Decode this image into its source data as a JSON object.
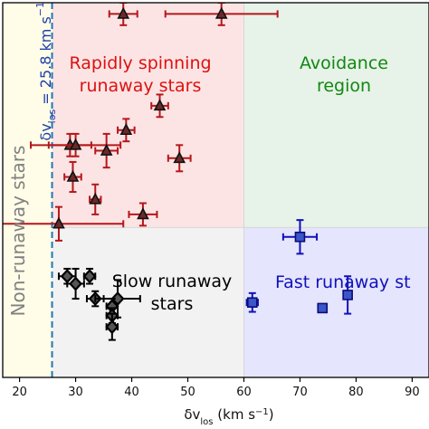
{
  "chart_data": {
    "type": "scatter",
    "xlabel": "δv_los (km s⁻¹)",
    "xlabel_main": "δv",
    "xlabel_sub": "los",
    "xlabel_unit_open": " (km s",
    "xlabel_unit_exp": "−1",
    "xlabel_unit_close": ")",
    "xlim": [
      17,
      93
    ],
    "ylim": [
      0,
      1
    ],
    "xticks": [
      "20",
      "30",
      "40",
      "50",
      "60",
      "70",
      "80",
      "90"
    ],
    "xtick_values": [
      20,
      30,
      40,
      50,
      60,
      70,
      80,
      90
    ],
    "grid": false,
    "threshold": {
      "value": 25.8,
      "label_main": "δv",
      "label_sub": "los",
      "label_eq": " = 25.8 km s",
      "label_exp": "−1",
      "color": "#1f77b4"
    },
    "regions": [
      {
        "name": "non-runaway",
        "x": [
          17,
          25.8
        ],
        "y": [
          0,
          1
        ],
        "color": "#fffde8",
        "label_lines": [
          "Non-runaway stars"
        ],
        "label_color": "#808080"
      },
      {
        "name": "rapid",
        "x": [
          25.8,
          60
        ],
        "y": [
          0.4,
          1
        ],
        "color": "#fde4e4",
        "label_lines": [
          "Rapidly spinning",
          "runaway stars"
        ],
        "label_color": "#dd1111"
      },
      {
        "name": "avoidance",
        "x": [
          60,
          93
        ],
        "y": [
          0.4,
          1
        ],
        "color": "#e7f2e8",
        "label_lines": [
          "Avoidance",
          "region"
        ],
        "label_color": "#118811"
      },
      {
        "name": "slow",
        "x": [
          25.8,
          60
        ],
        "y": [
          0,
          0.4
        ],
        "color": "#f2f2f2",
        "label_lines": [
          "Slow runaway",
          "stars"
        ],
        "label_color": "#000000"
      },
      {
        "name": "fast",
        "x": [
          60,
          93
        ],
        "y": [
          0,
          0.4
        ],
        "color": "#e5e5fd",
        "label_lines": [
          "Fast runaway st"
        ],
        "label_color": "#1111bb"
      }
    ],
    "series": [
      {
        "marker": "triangle",
        "color": "#b5171b",
        "fill": "#6a2a2a",
        "points": [
          {
            "x": 38.5,
            "y": 0.97,
            "xerr": 2.5,
            "yerr": 0.03
          },
          {
            "x": 56.0,
            "y": 0.97,
            "xerr": 10.0,
            "yerr": 0.03
          },
          {
            "x": 45.0,
            "y": 0.725,
            "xerr": 1.5,
            "yerr": 0.03
          },
          {
            "x": 39.0,
            "y": 0.66,
            "xerr": 1.5,
            "yerr": 0.03
          },
          {
            "x": 29.0,
            "y": 0.62,
            "xerr": 3.8,
            "yerr": 0.03
          },
          {
            "x": 30.0,
            "y": 0.62,
            "xerr": 8.0,
            "yerr": 0.03
          },
          {
            "x": 35.5,
            "y": 0.605,
            "xerr": 2.0,
            "yerr": 0.045
          },
          {
            "x": 48.5,
            "y": 0.585,
            "xerr": 2.0,
            "yerr": 0.035
          },
          {
            "x": 29.5,
            "y": 0.535,
            "xerr": 1.5,
            "yerr": 0.04
          },
          {
            "x": 33.5,
            "y": 0.475,
            "xerr": 1.0,
            "yerr": 0.04
          },
          {
            "x": 42.0,
            "y": 0.435,
            "xerr": 2.5,
            "yerr": 0.03
          },
          {
            "x": 27.0,
            "y": 0.41,
            "xerr": 11.5,
            "yerr": 0.045
          }
        ]
      },
      {
        "marker": "diamond",
        "color": "#000000",
        "fill": "#555555",
        "points": [
          {
            "x": 28.5,
            "y": 0.27,
            "xerr": 1.5,
            "yerr": 0.02
          },
          {
            "x": 30.0,
            "y": 0.25,
            "xerr": 1.5,
            "yerr": 0.04
          },
          {
            "x": 32.5,
            "y": 0.27,
            "xerr": 1.0,
            "yerr": 0.02
          },
          {
            "x": 33.5,
            "y": 0.21,
            "xerr": 1.5,
            "yerr": 0.02
          },
          {
            "x": 37.5,
            "y": 0.21,
            "xerr": 4.0,
            "yerr": 0.05
          },
          {
            "x": 36.5,
            "y": 0.19,
            "xerr": 1.0,
            "yerr": 0.02
          },
          {
            "x": 36.5,
            "y": 0.165,
            "xerr": 1.0,
            "yerr": 0.02
          },
          {
            "x": 36.5,
            "y": 0.135,
            "xerr": 1.0,
            "yerr": 0.035
          }
        ]
      },
      {
        "marker": "square",
        "color": "#1111bb",
        "fill": "#3a56c8",
        "points": [
          {
            "x": 70.0,
            "y": 0.375,
            "xerr": 3.0,
            "yerr": 0.045
          },
          {
            "x": 61.5,
            "y": 0.2,
            "xerr": 1.0,
            "yerr": 0.025
          },
          {
            "x": 74.0,
            "y": 0.185,
            "xerr": 0.5,
            "yerr": 0.01
          },
          {
            "x": 78.5,
            "y": 0.22,
            "xerr": 0.5,
            "yerr": 0.05
          }
        ]
      }
    ]
  }
}
